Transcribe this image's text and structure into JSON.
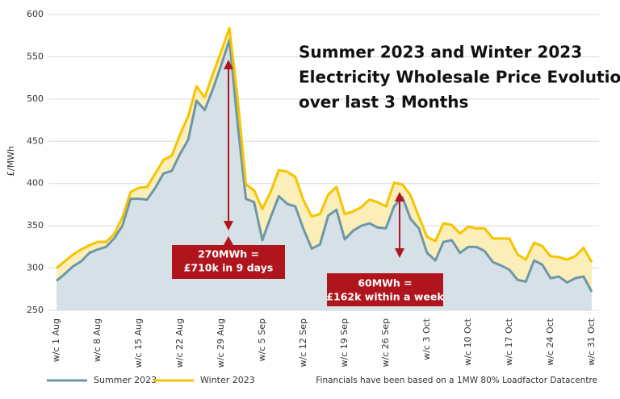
{
  "chart_data": {
    "type": "line",
    "title": [
      "Summer 2023 and Winter 2023",
      "Electricity Wholesale Price Evolution",
      "over last 3 Months"
    ],
    "y_label": "£/MWh",
    "categories": [
      "w/c 1 Aug",
      null,
      null,
      null,
      null,
      "w/c 8 Aug",
      null,
      null,
      null,
      null,
      "w/c 15 Aug",
      null,
      null,
      null,
      null,
      "w/c 22 Aug",
      null,
      null,
      null,
      null,
      "w/c 29 Aug",
      null,
      null,
      null,
      null,
      "w/c 5 Sep",
      null,
      null,
      null,
      null,
      "w/c 12 Sep",
      null,
      null,
      null,
      null,
      "w/c 19 Sep",
      null,
      null,
      null,
      null,
      "w/c 26 Sep",
      null,
      null,
      null,
      null,
      "w/c 3 Oct",
      null,
      null,
      null,
      null,
      "w/c 10 Oct",
      null,
      null,
      null,
      null,
      "w/c 17 Oct",
      null,
      null,
      null,
      null,
      "w/c 24 Oct",
      null,
      null,
      null,
      null,
      "w/c 31 Oct"
    ],
    "series": [
      {
        "name": "Summer 2023",
        "color": "#6d97a9",
        "fill": "#d6e1e7",
        "values": [
          285,
          293,
          302,
          308,
          318,
          322,
          325,
          335,
          350,
          382,
          382,
          381,
          395,
          412,
          415,
          435,
          452,
          498,
          487,
          512,
          540,
          570,
          470,
          382,
          378,
          333,
          360,
          385,
          376,
          373,
          346,
          323,
          328,
          362,
          369,
          334,
          344,
          350,
          353,
          348,
          347,
          373,
          384,
          358,
          347,
          318,
          309,
          331,
          333,
          318,
          325,
          325,
          320,
          307,
          303,
          298,
          286,
          284,
          309,
          304,
          288,
          290,
          283,
          288,
          290,
          272
        ]
      },
      {
        "name": "Winter 2023",
        "color": "#f5c400",
        "fill": "#fbeeb8",
        "values": [
          300,
          308,
          316,
          322,
          327,
          331,
          331,
          340,
          360,
          390,
          395,
          396,
          412,
          428,
          433,
          458,
          480,
          515,
          502,
          530,
          556,
          584,
          500,
          399,
          392,
          370,
          390,
          416,
          414,
          408,
          380,
          361,
          364,
          387,
          396,
          364,
          367,
          372,
          381,
          378,
          373,
          401,
          399,
          386,
          361,
          337,
          332,
          353,
          351,
          341,
          349,
          347,
          347,
          335,
          335,
          335,
          316,
          310,
          330,
          326,
          314,
          313,
          310,
          314,
          324,
          307
        ]
      }
    ],
    "ylim": [
      250,
      600
    ],
    "yticks": [
      250,
      300,
      350,
      400,
      450,
      500,
      550,
      600
    ],
    "grid": true,
    "annotations": [
      [
        "270MWh =",
        "£710k in 9 days"
      ],
      [
        "60MWh =",
        "£162k within a week"
      ]
    ],
    "footnote": "Financials have been based on a 1MW 80% Loadfactor Datacentre"
  }
}
